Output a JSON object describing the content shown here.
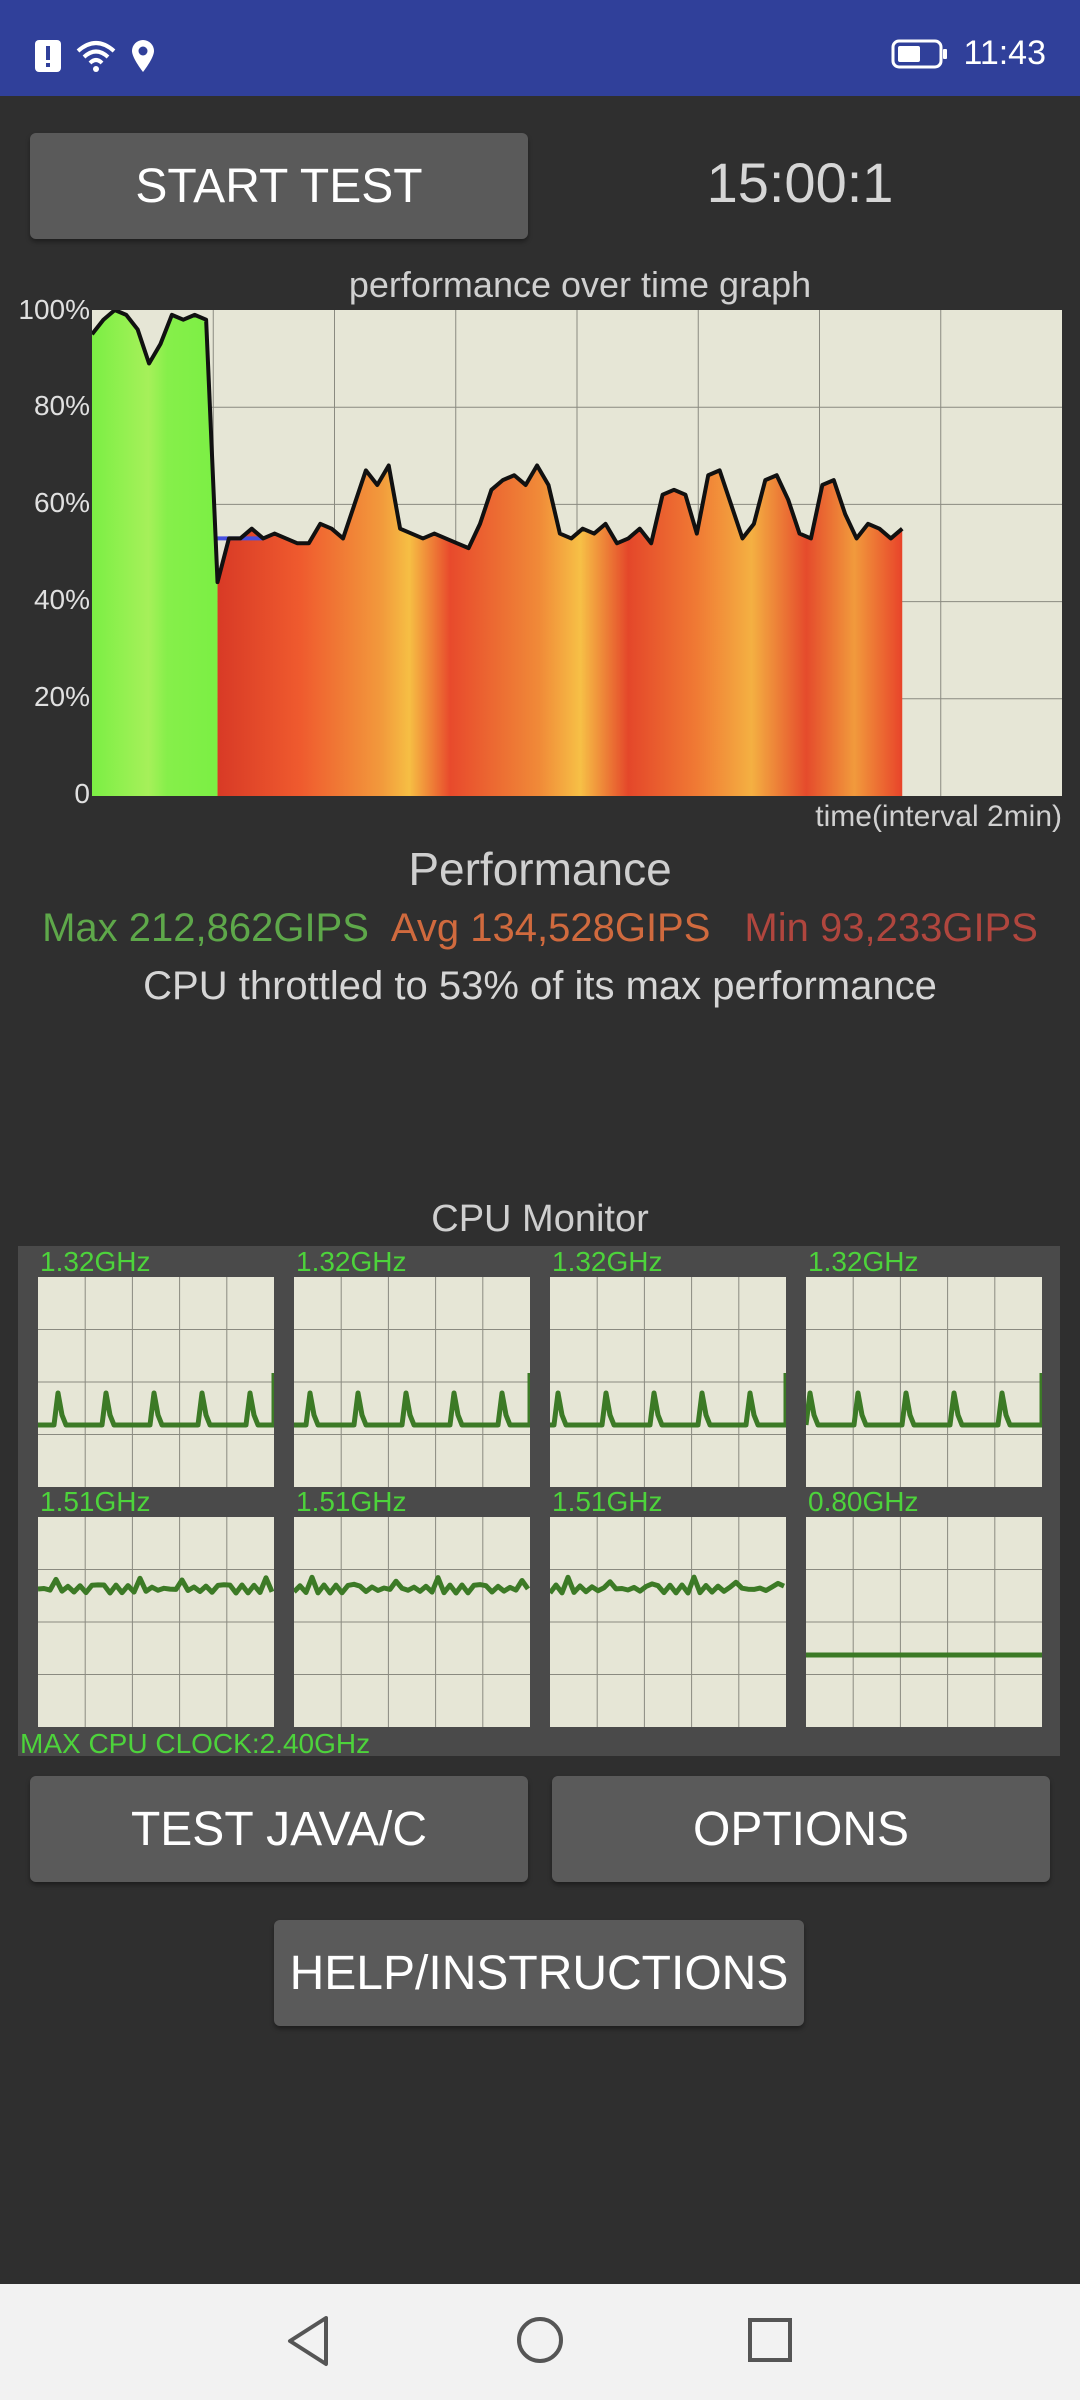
{
  "status_bar": {
    "time": "11:43",
    "icons": [
      "alert-icon",
      "wifi-icon",
      "location-icon",
      "battery-icon"
    ]
  },
  "buttons": {
    "start_test": "START TEST",
    "test_java_c": "TEST JAVA/C",
    "options": "OPTIONS",
    "help": "HELP/INSTRUCTIONS"
  },
  "timer": "15:00:1",
  "graph": {
    "title": "performance over time graph",
    "y_ticks": [
      "100%",
      "80%",
      "60%",
      "40%",
      "20%",
      "0"
    ],
    "x_label": "time(interval 2min)"
  },
  "chart_data": {
    "type": "area",
    "title": "performance over time graph",
    "xlabel": "time(interval 2min)",
    "ylabel": "",
    "ylim": [
      0,
      100
    ],
    "grid": true,
    "values": [
      95,
      98,
      100,
      99,
      96,
      89,
      93,
      99,
      98,
      99,
      98,
      44,
      53,
      53,
      55,
      53,
      54,
      53,
      52,
      52,
      56,
      55,
      53,
      60,
      67,
      64,
      68,
      55,
      54,
      53,
      54,
      53,
      52,
      51,
      56,
      63,
      65,
      66,
      64,
      68,
      64,
      54,
      53,
      55,
      54,
      56,
      52,
      53,
      55,
      52,
      62,
      63,
      62,
      54,
      66,
      67,
      60,
      53,
      56,
      65,
      66,
      61,
      54,
      53,
      64,
      65,
      58,
      53,
      56,
      55,
      53,
      55
    ],
    "colors": {
      "max": "#5ea84a",
      "avg": "#d06a3e",
      "min": "#b0463e",
      "green_fill": "#86ef4a",
      "red_fill": "#e8482c"
    }
  },
  "performance": {
    "title": "Performance",
    "max": "Max 212,862GIPS",
    "avg": "Avg 134,528GIPS",
    "min": "Min 93,233GIPS",
    "throttle_text": "CPU throttled to 53% of its max performance"
  },
  "cpu_monitor": {
    "title": "CPU Monitor",
    "cores": [
      {
        "freq": "1.32GHz"
      },
      {
        "freq": "1.32GHz"
      },
      {
        "freq": "1.32GHz"
      },
      {
        "freq": "1.32GHz"
      },
      {
        "freq": "1.51GHz"
      },
      {
        "freq": "1.51GHz"
      },
      {
        "freq": "1.51GHz"
      },
      {
        "freq": "0.80GHz"
      }
    ],
    "max_clock": "MAX CPU CLOCK:2.40GHz"
  },
  "navigation": {
    "icons": [
      "back-icon",
      "home-icon",
      "recents-icon"
    ]
  }
}
